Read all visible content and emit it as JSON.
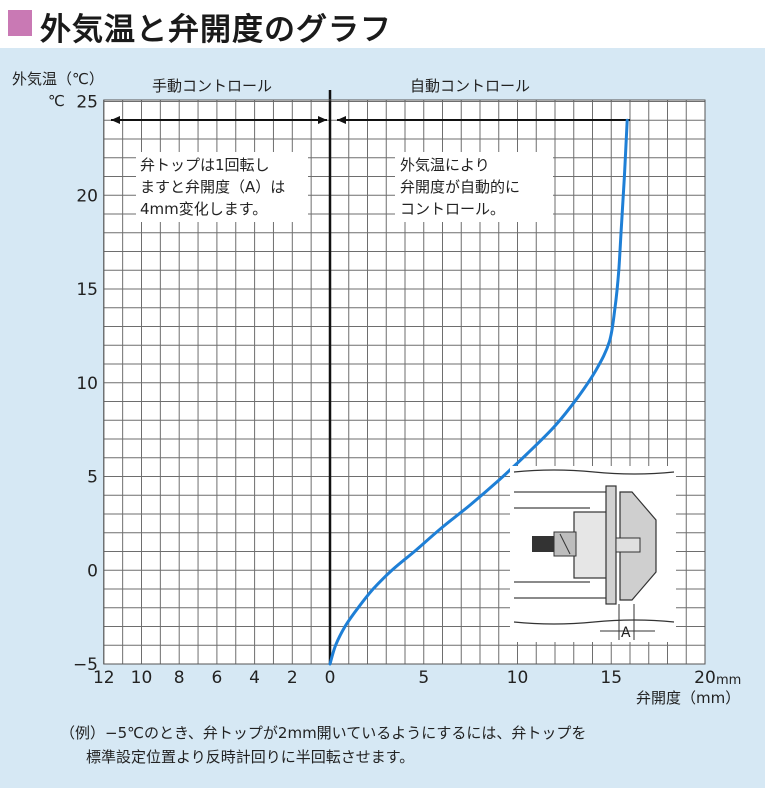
{
  "title": "外気温と弁開度のグラフ",
  "caption": {
    "line1": "（例）−5℃のとき、弁トップが2mm開いているようにするには、弁トップを",
    "line2": "標準設定位置より反時計回りに半回転させます。"
  },
  "colors": {
    "title_square": "#c979b4",
    "background": "#d6e8f4",
    "grid": "#6e6e6e",
    "curve": "#1e7fd6"
  },
  "chart_data": {
    "type": "line",
    "ylabel": "外気温（℃）",
    "y_unit_prefix": "℃",
    "xlabel": "弁開度（mm）",
    "x_last_unit": "mm",
    "xlim": [
      -12,
      20
    ],
    "ylim": [
      -5,
      25
    ],
    "grid": true,
    "x_ticks": [
      {
        "value": -12,
        "label": "12"
      },
      {
        "value": -10,
        "label": "10"
      },
      {
        "value": -8,
        "label": "8"
      },
      {
        "value": -6,
        "label": "6"
      },
      {
        "value": -4,
        "label": "4"
      },
      {
        "value": -2,
        "label": "2"
      },
      {
        "value": 0,
        "label": "0"
      },
      {
        "value": 5,
        "label": "5"
      },
      {
        "value": 10,
        "label": "10"
      },
      {
        "value": 15,
        "label": "15"
      },
      {
        "value": 20,
        "label": "20"
      }
    ],
    "y_ticks": [
      {
        "value": 25,
        "label": "25"
      },
      {
        "value": 20,
        "label": "20"
      },
      {
        "value": 15,
        "label": "15"
      },
      {
        "value": 10,
        "label": "10"
      },
      {
        "value": 5,
        "label": "5"
      },
      {
        "value": 0,
        "label": "0"
      },
      {
        "value": -5,
        "label": "−5"
      }
    ],
    "regions": {
      "manual": "手動コントロール",
      "auto": "自動コントロール"
    },
    "annotations": {
      "manual_note": [
        "弁トップは1回転し",
        "ますと弁開度（A）は",
        "4mm変化します。"
      ],
      "auto_note": [
        "外気温により",
        "弁開度が自動的に",
        "コントロール。"
      ],
      "inset_label": "A"
    },
    "series": [
      {
        "x": [
          0,
          0.3,
          0.8,
          1.5,
          2.3,
          3.3,
          4.5,
          6,
          7.5,
          9,
          10.5,
          12,
          13.2,
          14.2,
          14.9,
          15.2,
          15.4,
          15.55,
          15.7,
          15.85
        ],
        "y": [
          -5,
          -4,
          -3,
          -2,
          -1,
          0,
          1,
          2.3,
          3.5,
          4.8,
          6.2,
          7.7,
          9.2,
          10.7,
          12.2,
          14,
          16,
          18.5,
          21,
          24
        ]
      }
    ]
  }
}
